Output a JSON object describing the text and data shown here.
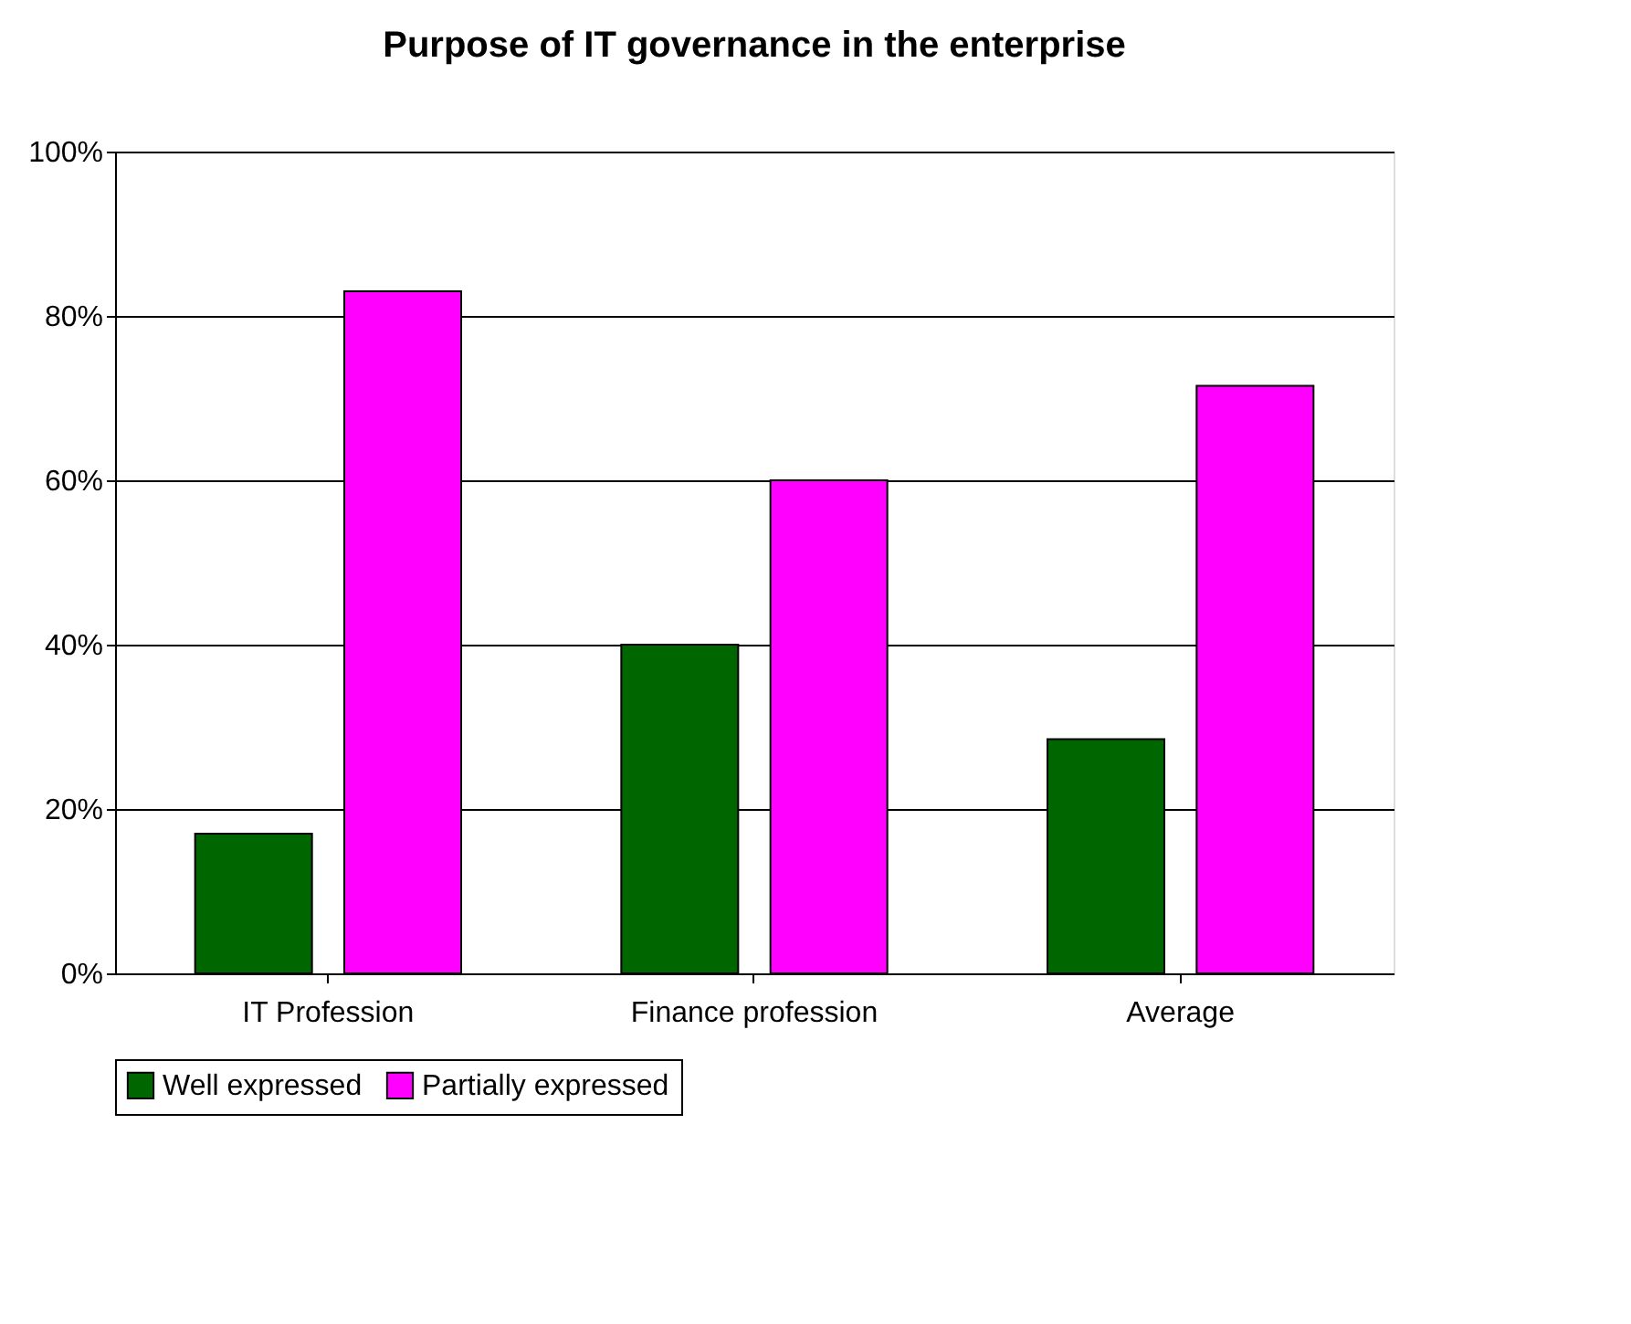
{
  "chart_data": {
    "type": "bar",
    "title": "Purpose of IT governance in the enterprise",
    "categories": [
      "IT Profession",
      "Finance profession",
      "Average"
    ],
    "series": [
      {
        "name": "Well expressed",
        "color": "#006600",
        "values": [
          17,
          40,
          28.5
        ]
      },
      {
        "name": "Partially expressed",
        "color": "#ff00ff",
        "values": [
          83,
          60,
          71.5
        ]
      }
    ],
    "ylim": [
      0,
      100
    ],
    "yticks": [
      {
        "value": 0,
        "label": "0%"
      },
      {
        "value": 20,
        "label": "20%"
      },
      {
        "value": 40,
        "label": "40%"
      },
      {
        "value": 60,
        "label": "60%"
      },
      {
        "value": 80,
        "label": "80%"
      },
      {
        "value": 100,
        "label": "100%"
      }
    ],
    "grid": "y",
    "legend": "bottom"
  }
}
